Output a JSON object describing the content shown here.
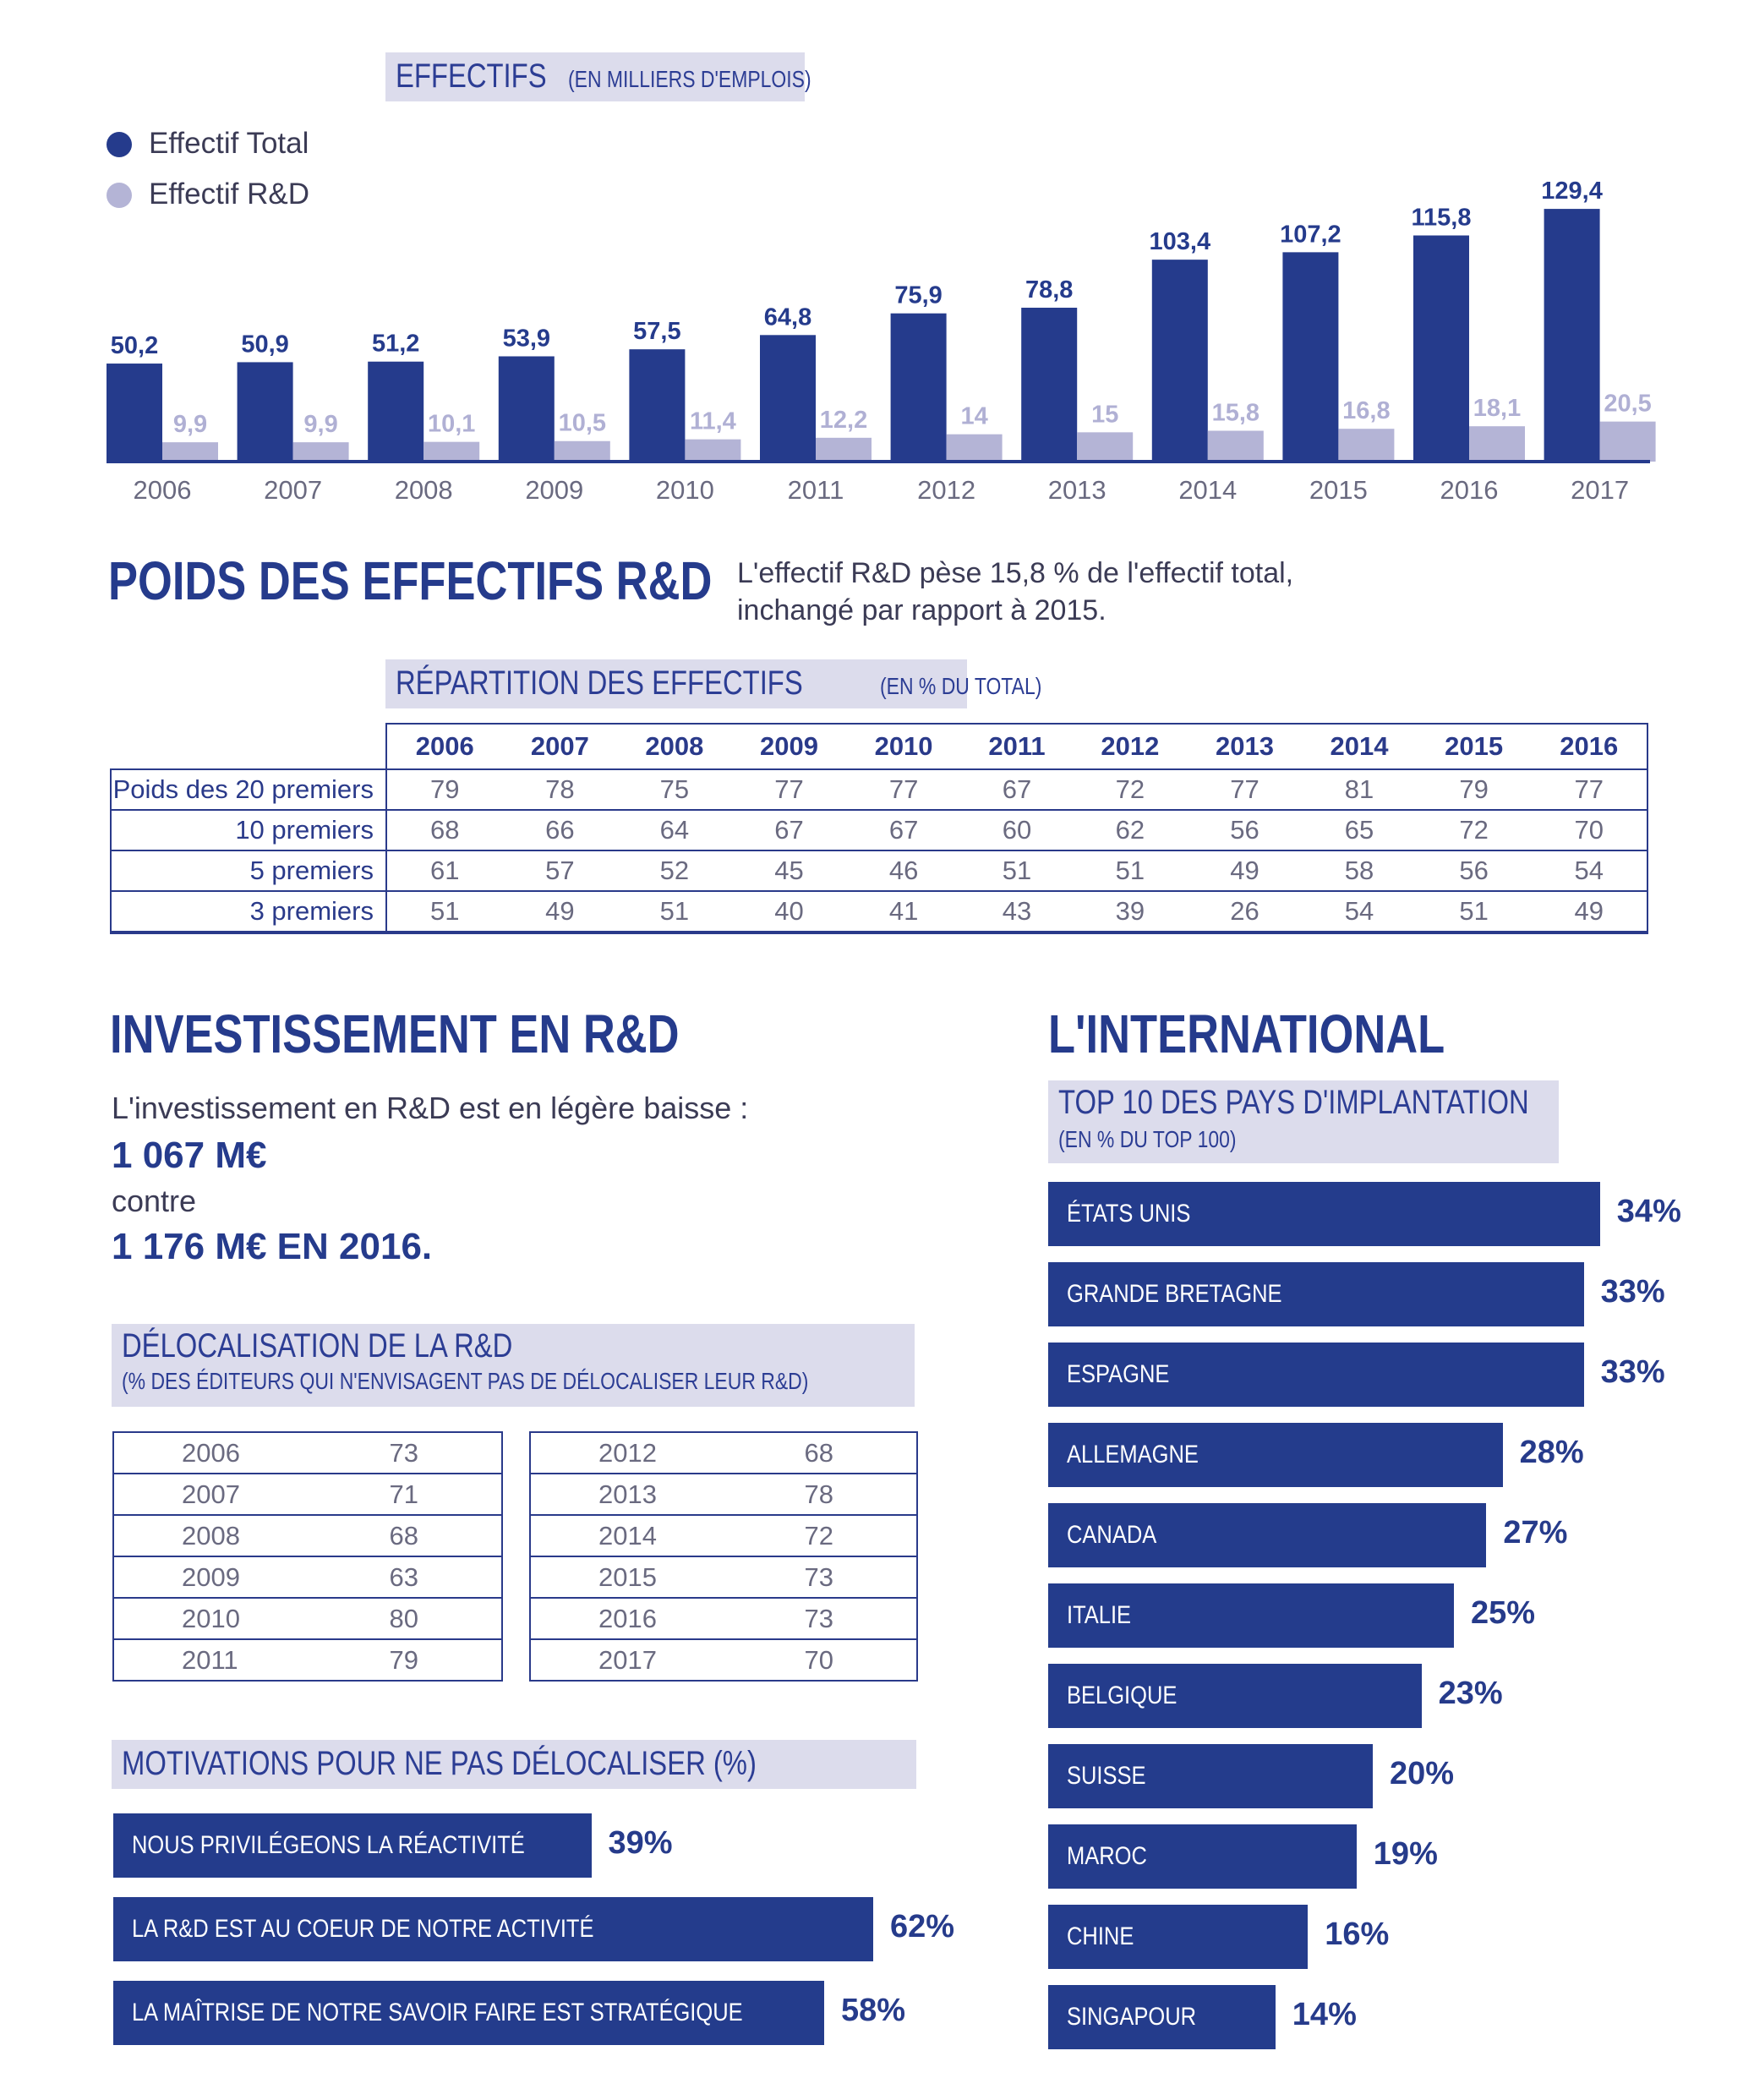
{
  "chart_data": [
    {
      "type": "bar",
      "title": "EFFECTIFS",
      "subtitle": "(EN MILLIERS D'EMPLOIS)",
      "categories": [
        "2006",
        "2007",
        "2008",
        "2009",
        "2010",
        "2011",
        "2012",
        "2013",
        "2014",
        "2015",
        "2016",
        "2017"
      ],
      "series": [
        {
          "name": "Effectif Total",
          "color": "#253b8c",
          "values": [
            50.2,
            50.9,
            51.2,
            53.9,
            57.5,
            64.8,
            75.9,
            78.8,
            103.4,
            107.2,
            115.8,
            129.4
          ],
          "labels": [
            "50,2",
            "50,9",
            "51,2",
            "53,9",
            "57,5",
            "64,8",
            "75,9",
            "78,8",
            "103,4",
            "107,2",
            "115,8",
            "129,4"
          ]
        },
        {
          "name": "Effectif R&D",
          "color": "#b4b4d6",
          "values": [
            9.9,
            9.9,
            10.1,
            10.5,
            11.4,
            12.2,
            14,
            15,
            15.8,
            16.8,
            18.1,
            20.5
          ],
          "labels": [
            "9,9",
            "9,9",
            "10,1",
            "10,5",
            "11,4",
            "12,2",
            "14",
            "15",
            "15,8",
            "16,8",
            "18,1",
            "20,5"
          ]
        }
      ],
      "ylim": [
        0,
        140
      ],
      "legend": "top-left",
      "grid": false
    },
    {
      "type": "bar",
      "orientation": "horizontal",
      "title": "TOP 10 DES PAYS D'IMPLANTATION",
      "subtitle": "(EN % DU TOP 100)",
      "categories": [
        "ÉTATS UNIS",
        "GRANDE BRETAGNE",
        "ESPAGNE",
        "ALLEMAGNE",
        "CANADA",
        "ITALIE",
        "BELGIQUE",
        "SUISSE",
        "MAROC",
        "CHINE",
        "SINGAPOUR"
      ],
      "values": [
        34,
        33,
        33,
        28,
        27,
        25,
        23,
        20,
        19,
        16,
        14
      ],
      "labels": [
        "34%",
        "33%",
        "33%",
        "28%",
        "27%",
        "25%",
        "23%",
        "20%",
        "19%",
        "16%",
        "14%"
      ],
      "color": "#243c8c"
    },
    {
      "type": "bar",
      "orientation": "horizontal",
      "title": "MOTIVATIONS POUR NE PAS DÉLOCALISER (%)",
      "categories": [
        "NOUS PRIVILÉGEONS LA RÉACTIVITÉ",
        "LA R&D EST AU COEUR DE NOTRE ACTIVITÉ",
        "LA MAÎTRISE DE NOTRE SAVOIR FAIRE EST STRATÉGIQUE"
      ],
      "values": [
        39,
        62,
        58
      ],
      "labels": [
        "39%",
        "62%",
        "58%"
      ],
      "color": "#243c8c"
    },
    {
      "type": "table",
      "title": "RÉPARTITION DES EFFECTIFS",
      "subtitle": "(EN % DU TOTAL)",
      "columns": [
        "2006",
        "2007",
        "2008",
        "2009",
        "2010",
        "2011",
        "2012",
        "2013",
        "2014",
        "2015",
        "2016"
      ],
      "rows": [
        {
          "label": "Poids des 20 premiers",
          "values": [
            "79",
            "78",
            "75",
            "77",
            "77",
            "67",
            "72",
            "77",
            "81",
            "79",
            "77"
          ]
        },
        {
          "label": "10 premiers",
          "values": [
            "68",
            "66",
            "64",
            "67",
            "67",
            "60",
            "62",
            "56",
            "65",
            "72",
            "70"
          ]
        },
        {
          "label": "5 premiers",
          "values": [
            "61",
            "57",
            "52",
            "45",
            "46",
            "51",
            "51",
            "49",
            "58",
            "56",
            "54"
          ]
        },
        {
          "label": "3 premiers",
          "values": [
            "51",
            "49",
            "51",
            "40",
            "41",
            "43",
            "39",
            "26",
            "54",
            "51",
            "49"
          ]
        }
      ]
    },
    {
      "type": "table",
      "title": "DÉLOCALISATION DE LA R&D",
      "subtitle": "(% DES ÉDITEURS QUI N'ENVISAGENT PAS DE DÉLOCALISER LEUR R&D)",
      "left": [
        [
          "2006",
          "73"
        ],
        [
          "2007",
          "71"
        ],
        [
          "2008",
          "68"
        ],
        [
          "2009",
          "63"
        ],
        [
          "2010",
          "80"
        ],
        [
          "2011",
          "79"
        ]
      ],
      "right": [
        [
          "2012",
          "68"
        ],
        [
          "2013",
          "78"
        ],
        [
          "2014",
          "72"
        ],
        [
          "2015",
          "73"
        ],
        [
          "2016",
          "73"
        ],
        [
          "2017",
          "70"
        ]
      ]
    }
  ],
  "poids": {
    "title": "POIDS DES EFFECTIFS R&D",
    "text_line1": "L'effectif R&D pèse 15,8 % de l'effectif total,",
    "text_line2": "inchangé par rapport à 2015."
  },
  "investissement": {
    "title": "INVESTISSEMENT EN R&D",
    "line1": "L'investissement en R&D est en légère baisse :",
    "amount": "1 067 M€",
    "contre": "contre",
    "previous": "1 176 M€ EN 2016."
  },
  "international": {
    "title": "L'INTERNATIONAL"
  },
  "colors": {
    "dark_blue": "#253b8c",
    "light_purple": "#b4b4d6",
    "header_bg": "#dcdcec"
  }
}
